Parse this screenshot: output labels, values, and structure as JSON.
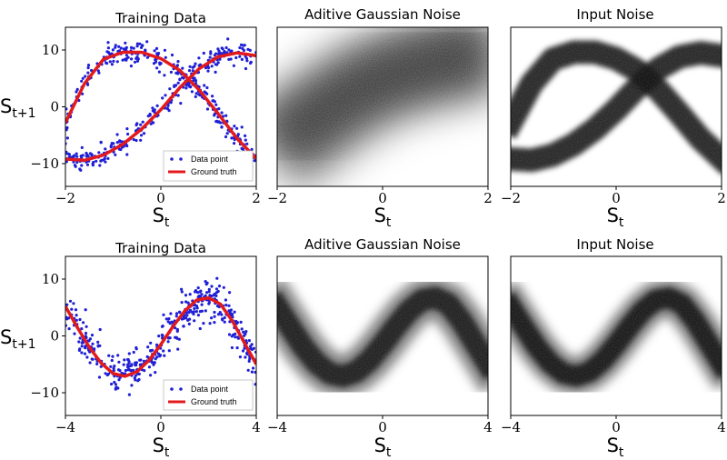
{
  "chart_data": [
    {
      "type": "scatter",
      "title": "Training Data",
      "xlabel": "S",
      "xlabel_sub": "t",
      "ylabel": "S",
      "ylabel_sub": "t+1",
      "xlim": [
        -2,
        2
      ],
      "ylim": [
        -14,
        14
      ],
      "xticks": [
        "−2",
        "0",
        "2"
      ],
      "yticks": [
        "10",
        "0",
        "−10"
      ],
      "ytick_values": [
        10,
        0,
        -10
      ],
      "legend": [
        "Data point",
        "Ground truth"
      ],
      "legend_position": "bottom-right",
      "grid": false,
      "series": [
        {
          "name": "Ground truth",
          "type": "line",
          "color": "#e31a1c",
          "x": [
            -2,
            -1.6,
            -1.2,
            -0.8,
            -0.4,
            0,
            0.4,
            0.8,
            1.2,
            1.6,
            2
          ],
          "y": [
            -2.8,
            4.1,
            8.4,
            9.6,
            9.6,
            8.5,
            6.4,
            3.0,
            -1.2,
            -5.6,
            -9.1
          ]
        },
        {
          "name": "Ground truth",
          "type": "line",
          "color": "#e31a1c",
          "x": [
            -2,
            -1.6,
            -1.2,
            -0.8,
            -0.4,
            0,
            0.4,
            0.8,
            1.2,
            1.6,
            2
          ],
          "y": [
            -9.2,
            -9.4,
            -8.5,
            -6.6,
            -3.9,
            -0.5,
            3.4,
            6.7,
            8.8,
            9.5,
            9.0
          ]
        }
      ],
      "points_note": "blue scatter around both curves, spread about ±1.2"
    },
    {
      "type": "heatmap",
      "title": "Aditive Gaussian Noise",
      "xlabel": "S",
      "xlabel_sub": "t",
      "xlim": [
        -2,
        2
      ],
      "ylim": [
        -14,
        14
      ],
      "xticks": [
        "−2",
        "0",
        "2"
      ],
      "colormap": "greys"
    },
    {
      "type": "heatmap",
      "title": "Input Noise",
      "xlabel": "S",
      "xlabel_sub": "t",
      "xlim": [
        -2,
        2
      ],
      "ylim": [
        -14,
        14
      ],
      "xticks": [
        "−2",
        "0",
        "2"
      ],
      "colormap": "greys"
    },
    {
      "type": "scatter",
      "title": "Training Data",
      "xlabel": "S",
      "xlabel_sub": "t",
      "ylabel": "S",
      "ylabel_sub": "t+1",
      "xlim": [
        -4,
        4
      ],
      "ylim": [
        -14,
        14
      ],
      "xticks": [
        "−4",
        "0",
        "4"
      ],
      "yticks": [
        "10",
        "0",
        "−10"
      ],
      "ytick_values": [
        10,
        0,
        -10
      ],
      "legend": [
        "Data point",
        "Ground truth"
      ],
      "legend_position": "bottom-right",
      "grid": false,
      "series": [
        {
          "name": "Ground truth",
          "type": "line",
          "color": "#e31a1c",
          "x": [
            -4,
            -3.5,
            -3,
            -2.5,
            -2,
            -1.5,
            -1,
            -0.5,
            0,
            0.5,
            1,
            1.5,
            2,
            2.5,
            3,
            3.5,
            4
          ],
          "y": [
            5.2,
            1.5,
            -2.0,
            -4.8,
            -6.6,
            -7.1,
            -6.3,
            -4.3,
            -1.5,
            1.6,
            4.4,
            6.3,
            6.7,
            5.6,
            2.6,
            -1.2,
            -5.0
          ]
        }
      ]
    },
    {
      "type": "heatmap",
      "title": "Aditive Gaussian Noise",
      "xlabel": "S",
      "xlabel_sub": "t",
      "xlim": [
        -4,
        4
      ],
      "ylim": [
        -14,
        14
      ],
      "xticks": [
        "−4",
        "0",
        "4"
      ],
      "colormap": "greys"
    },
    {
      "type": "heatmap",
      "title": "Input Noise",
      "xlabel": "S",
      "xlabel_sub": "t",
      "xlim": [
        -4,
        4
      ],
      "ylim": [
        -14,
        14
      ],
      "xticks": [
        "−4",
        "0",
        "4"
      ],
      "colormap": "greys"
    }
  ]
}
